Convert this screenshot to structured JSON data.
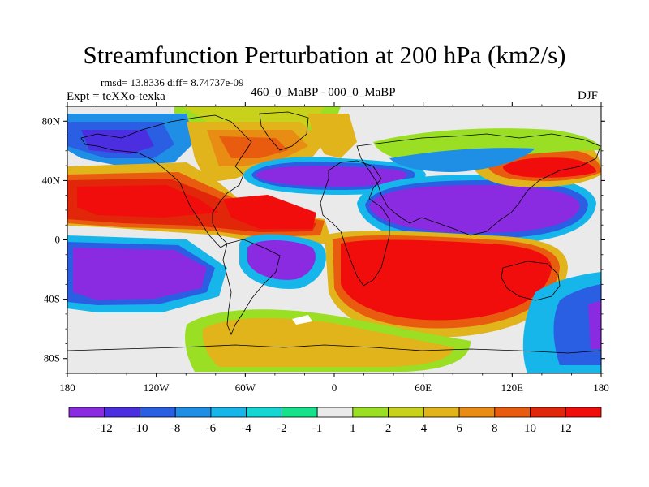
{
  "title": "Streamfunction Perturbation at 200 hPa (km2/s)",
  "stats_line": "rmsd= 13.8336 diff= 8.74737e-09",
  "subtitle": "460_0_MaBP - 000_0_MaBP",
  "experiment": "Expt = teXXo-texka",
  "season": "DJF",
  "lat_ticks": [
    "80N",
    "40N",
    "0",
    "40S",
    "80S"
  ],
  "lon_ticks": [
    "180",
    "120W",
    "60W",
    "0",
    "60E",
    "120E",
    "180"
  ],
  "colorbar": {
    "labels": [
      "-12",
      "-10",
      "-8",
      "-6",
      "-4",
      "-2",
      "-1",
      "1",
      "2",
      "4",
      "6",
      "8",
      "10",
      "12"
    ],
    "colors": [
      "#8a2be2",
      "#4b2ee0",
      "#2b5fe3",
      "#1f8fe6",
      "#16b6ea",
      "#14d7d4",
      "#16e28c",
      "#eaeaea",
      "#9adf23",
      "#c9d21a",
      "#e0b41a",
      "#e88c14",
      "#e95c0f",
      "#e1260a",
      "#f20d0d"
    ]
  },
  "chart_data": {
    "type": "heatmap",
    "title": "Streamfunction Perturbation at 200 hPa (km2/s)",
    "projection": "cylindrical equidistant",
    "xlim": [
      -180,
      180
    ],
    "ylim": [
      -90,
      90
    ],
    "contour_levels": [
      -12,
      -10,
      -8,
      -6,
      -4,
      -2,
      -1,
      1,
      2,
      4,
      6,
      8,
      10,
      12
    ],
    "x_ticks": [
      -180,
      -120,
      -60,
      0,
      60,
      120,
      180
    ],
    "y_ticks": [
      80,
      40,
      0,
      -40,
      -80
    ],
    "features": [
      {
        "sign": "positive",
        "value": 13,
        "lon": -130,
        "lat": 27
      },
      {
        "sign": "positive",
        "value": 13,
        "lon": -40,
        "lat": 20
      },
      {
        "sign": "positive",
        "value": 13,
        "lon": 60,
        "lat": -20
      },
      {
        "sign": "positive",
        "value": 12,
        "lon": 145,
        "lat": 45
      },
      {
        "sign": "positive",
        "value": 8,
        "lon": -75,
        "lat": 65
      },
      {
        "sign": "positive",
        "value": 6,
        "lon": -60,
        "lat": -75
      },
      {
        "sign": "negative",
        "value": -13,
        "lon": -145,
        "lat": -25
      },
      {
        "sign": "negative",
        "value": -13,
        "lon": 100,
        "lat": 10
      },
      {
        "sign": "negative",
        "value": -12,
        "lon": -30,
        "lat": 42
      },
      {
        "sign": "negative",
        "value": -12,
        "lon": -40,
        "lat": -20
      },
      {
        "sign": "negative",
        "value": -10,
        "lon": 165,
        "lat": -45
      },
      {
        "sign": "negative",
        "value": -10,
        "lon": -160,
        "lat": 60
      }
    ]
  }
}
